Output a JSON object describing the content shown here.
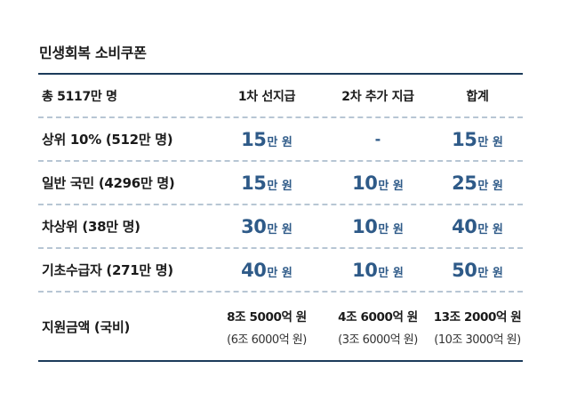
{
  "title": "민생회복 소비쿠폰",
  "header": {
    "col0": "총 5117만 명",
    "col1": "1차 선지급",
    "col2": "2차 추가 지급",
    "col3": "합계"
  },
  "rows": [
    {
      "label": "상위 10% (512만 명)",
      "first": {
        "num": "15",
        "unit": "만 원"
      },
      "second": "-",
      "total": {
        "num": "15",
        "unit": "만 원"
      }
    },
    {
      "label": "일반 국민 (4296만 명)",
      "first": {
        "num": "15",
        "unit": "만 원"
      },
      "second": {
        "num": "10",
        "unit": "만 원"
      },
      "total": {
        "num": "25",
        "unit": "만 원"
      }
    },
    {
      "label": "차상위 (38만 명)",
      "first": {
        "num": "30",
        "unit": "만 원"
      },
      "second": {
        "num": "10",
        "unit": "만 원"
      },
      "total": {
        "num": "40",
        "unit": "만 원"
      }
    },
    {
      "label": "기초수급자 (271만 명)",
      "first": {
        "num": "40",
        "unit": "만 원"
      },
      "second": {
        "num": "10",
        "unit": "만 원"
      },
      "total": {
        "num": "50",
        "unit": "만 원"
      }
    }
  ],
  "summary": {
    "label": "지원금액 (국비)",
    "first": {
      "main": "8조 5000억 원",
      "sub": "(6조 6000억 원)"
    },
    "second": {
      "main": "4조 6000억 원",
      "sub": "(3조 6000억 원)"
    },
    "total": {
      "main": "13조 2000억 원",
      "sub": "(10조 3000억 원)"
    }
  },
  "colors": {
    "accent": "#2e5a88",
    "rule": "#1c3b5a",
    "dash": "#b7c6d4"
  }
}
